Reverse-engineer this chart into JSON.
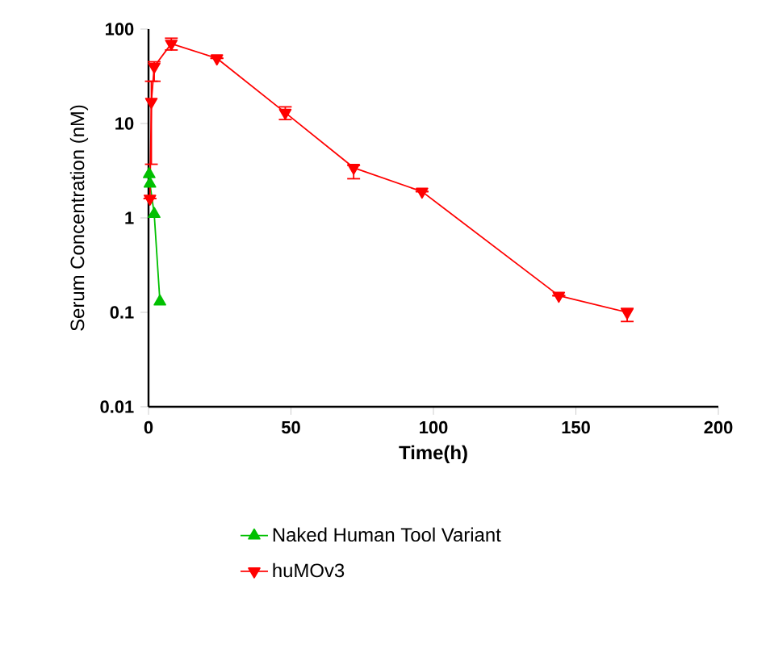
{
  "chart_data": {
    "type": "line",
    "xlabel": "Time(h)",
    "ylabel": "Serum Concentration (nM)",
    "log": "y",
    "xlim": [
      0,
      200
    ],
    "xticks": [
      0,
      50,
      100,
      150,
      200
    ],
    "ylim": [
      0.01,
      100
    ],
    "yticks": [
      0.01,
      0.1,
      1,
      10,
      100
    ],
    "grid": false,
    "legend": "bottom",
    "line_style": "solid",
    "series": [
      {
        "name": "Naked Human Tool Variant",
        "color": "#00c000",
        "marker": "triangle",
        "x": [
          0.25,
          0.5,
          2,
          4
        ],
        "values": [
          2.9,
          2.3,
          1.1,
          0.13
        ]
      },
      {
        "name": "huMOv3",
        "color": "#ff0000",
        "marker": "triangle-down",
        "x": [
          0.5,
          1,
          2,
          8,
          24,
          48,
          72,
          96,
          144,
          168
        ],
        "values": [
          1.6,
          17,
          40,
          70,
          49,
          13,
          3.4,
          1.9,
          0.15,
          0.1
        ],
        "errors": [
          null,
          [
            3.7,
            28
          ],
          [
            28,
            45
          ],
          [
            60,
            80
          ],
          null,
          [
            11,
            15
          ],
          [
            2.6,
            3.6
          ],
          null,
          null,
          [
            0.08,
            0.11
          ]
        ]
      }
    ]
  }
}
